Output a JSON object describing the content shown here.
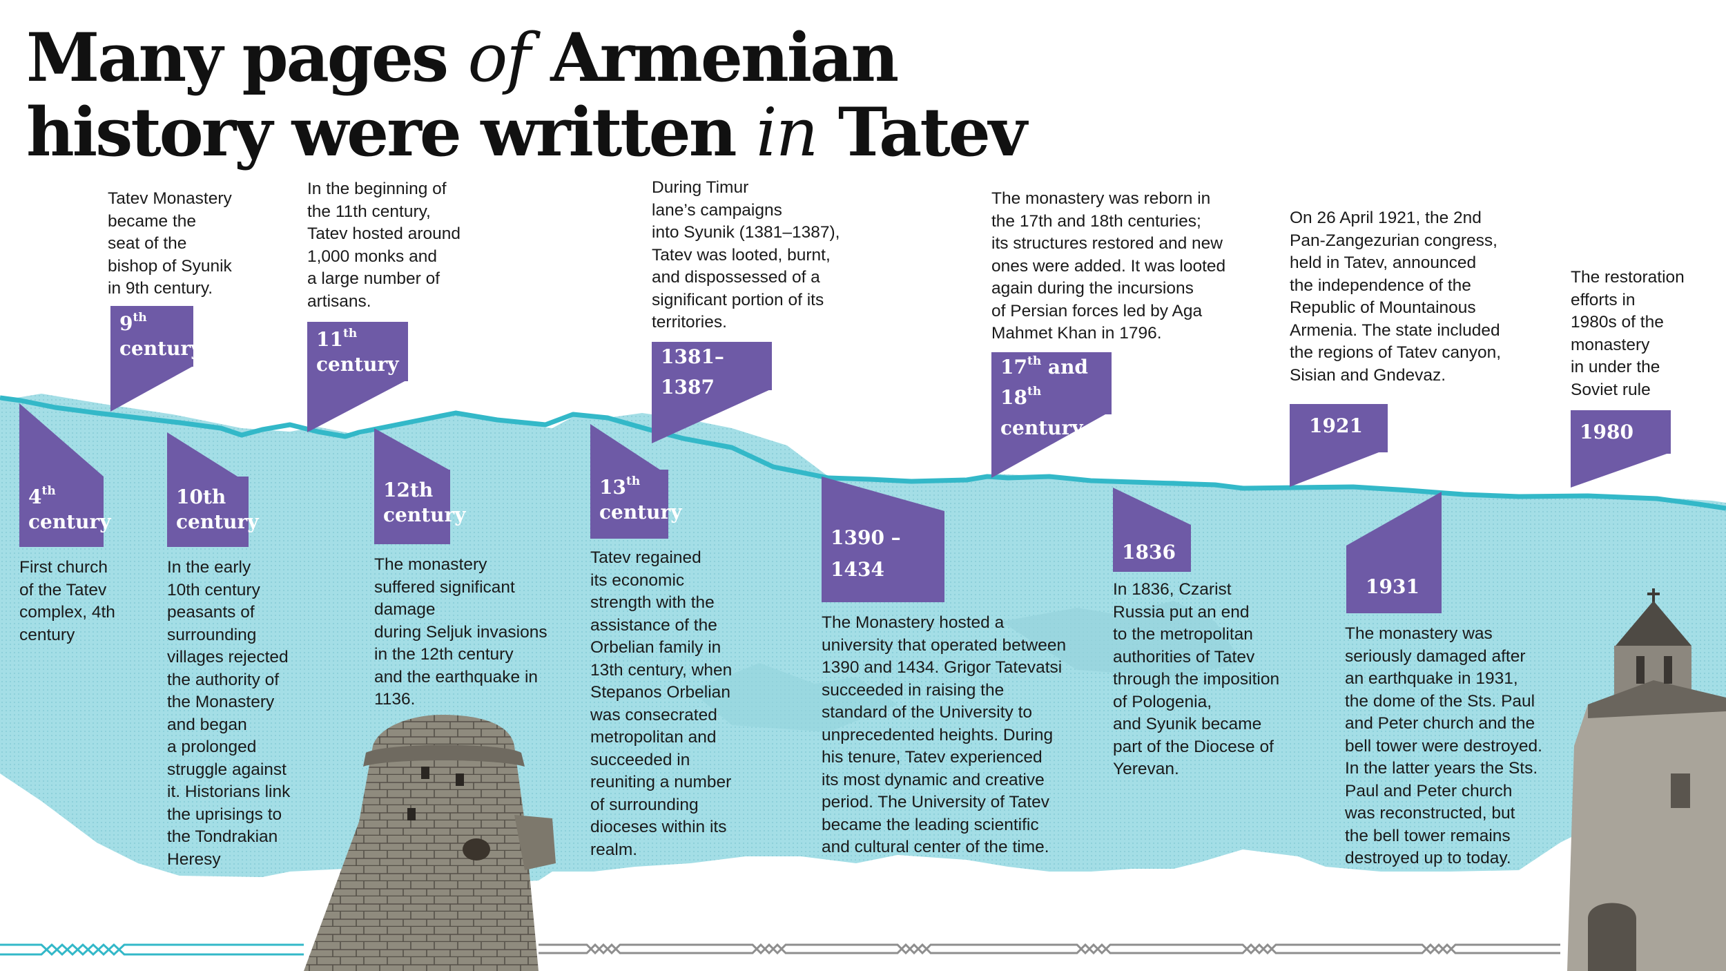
{
  "title": {
    "part1": "Many pages ",
    "part2": "of",
    "part3": " Armenian",
    "part4": "history were written ",
    "part5": "in",
    "part6": " Tatev"
  },
  "colors": {
    "accent_purple": "#6e5aa6",
    "timeline_teal": "#33b8c8",
    "mountain_cyan": "#9fdce4"
  },
  "events": [
    {
      "period_main": "4",
      "period_sup": "th",
      "period_rest": "century",
      "text": "First church\nof the Tatev\ncomplex, 4th\ncentury"
    },
    {
      "period_main": "9",
      "period_sup": "th",
      "period_rest": "century",
      "text": "Tatev Monastery\nbecame the\nseat of the\nbishop of Syunik\nin 9th century."
    },
    {
      "period_main": "10th",
      "period_rest": "century",
      "text": "In the early\n10th century\npeasants of\nsurrounding\nvillages rejected\nthe authority of\nthe Monastery\nand began\na prolonged\nstruggle against\nit. Historians link\nthe uprisings to\nthe Tondrakian\nHeresy"
    },
    {
      "period_main": "11",
      "period_sup": "th",
      "period_rest": "century",
      "text": "In the beginning of\nthe 11th century,\nTatev hosted around\n1,000 monks and\na large number of\nartisans."
    },
    {
      "period_main": "12th",
      "period_rest": "century",
      "text": "The monastery\nsuffered significant\ndamage\nduring Seljuk invasions\nin the 12th century\nand the earthquake in\n1136."
    },
    {
      "period_main": "13",
      "period_sup": "th",
      "period_rest": "century",
      "text": "Tatev regained\nits economic\nstrength with the\nassistance of the\nOrbelian family in\n13th century, when\nStepanos Orbelian\nwas consecrated\nmetropolitan and\nsucceeded in\nreuniting a number\nof surrounding\ndioceses within its\nrealm."
    },
    {
      "period_main": "1381–",
      "period_rest": "1387",
      "text": "During Timur\nlane’s campaigns\ninto Syunik (1381–1387),\nTatev was looted, burnt,\nand dispossessed of a\nsignificant portion of its\nterritories."
    },
    {
      "period_main": "1390 –",
      "period_rest": "1434",
      "text": "The Monastery hosted a\nuniversity that operated between\n1390 and 1434. Grigor Tatevatsi\nsucceeded in raising the\nstandard of the University to\nunprecedented heights. During\nhis tenure, Tatev experienced\nits most dynamic and creative\nperiod. The University of Tatev\nbecame the leading scientific\nand cultural center of the time."
    },
    {
      "period_main": "17",
      "period_sup": "th",
      "period_mid": " and",
      "period_main2": "18",
      "period_sup2": "th",
      "period_rest": " century",
      "text": "The monastery was reborn in\nthe 17th and 18th centuries;\nits structures restored and new\nones were added. It was looted\nagain during the incursions\nof Persian forces led by Aga\nMahmet Khan in 1796."
    },
    {
      "period_main": "1836",
      "text": "In 1836, Czarist\nRussia put an end\nto the metropolitan\nauthorities of Tatev\nthrough the imposition\nof Pologenia,\nand Syunik became\npart of the Diocese of\nYerevan."
    },
    {
      "period_main": "1921",
      "text": "On 26 April 1921, the 2nd\nPan-Zangezurian congress,\nheld in Tatev, announced\nthe independence of the\nRepublic of Mountainous\nArmenia. The state included\nthe regions of Tatev canyon,\nSisian and Gndevaz."
    },
    {
      "period_main": "1931",
      "text": "The monastery was\nseriously damaged after\nan earthquake in 1931,\nthe dome of the Sts. Paul\nand Peter church and the\nbell tower were destroyed.\nIn the latter years the Sts.\nPaul and Peter church\nwas reconstructed, but\nthe bell tower remains\ndestroyed up to today."
    },
    {
      "period_main": "1980",
      "text": "The restoration\nefforts in\n1980s of the\nmonastery\nin under the\nSoviet rule"
    }
  ]
}
